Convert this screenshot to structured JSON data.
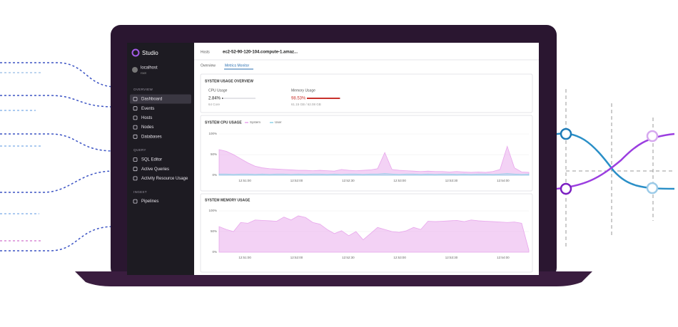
{
  "sidebar": {
    "brand": "Studio",
    "user": "localhost",
    "user_role": "root",
    "sections": [
      {
        "title": "OVERVIEW",
        "items": [
          "Dashboard",
          "Events",
          "Hosts",
          "Nodes",
          "Databases"
        ]
      },
      {
        "title": "QUERY",
        "items": [
          "SQL Editor",
          "Active Queries",
          "Activity Resource Usage"
        ]
      },
      {
        "title": "INGEST",
        "items": [
          "Pipelines"
        ]
      }
    ]
  },
  "header": {
    "breadcrumb": [
      "Hosts",
      "ec2-52-90-120-104.compute-1.amaz..."
    ]
  },
  "tabs": [
    "Overview",
    "Metrics Monitor"
  ],
  "usage_overview": {
    "title": "SYSTEM USAGE OVERVIEW",
    "cpu": {
      "label": "CPU Usage",
      "value": 2.84,
      "value_label": "2.84%",
      "note": "64 Core"
    },
    "memory": {
      "label": "Memory Usage",
      "value": 98.53,
      "value_label": "98.53%",
      "note": "61.15 GB / 62.08 GB"
    }
  },
  "cpu_chart": {
    "title": "SYSTEM CPU USAGE",
    "ylim": [
      0,
      100
    ],
    "yticks": [
      {
        "value": 100,
        "label": "100%"
      },
      {
        "value": 50,
        "label": "50%"
      },
      {
        "value": 0,
        "label": "0%"
      }
    ],
    "xticks": [
      "12:51:00",
      "12:52:00",
      "12:52:30",
      "12:53:00",
      "12:53:30",
      "12:54:00"
    ],
    "series": [
      {
        "name": "System",
        "color": "#e8a6ec",
        "values": [
          62,
          58,
          50,
          40,
          30,
          22,
          18,
          16,
          15,
          14,
          13,
          12,
          12,
          11,
          12,
          11,
          10,
          14,
          12,
          11,
          12,
          13,
          16,
          55,
          14,
          12,
          11,
          10,
          9,
          10,
          9,
          9,
          8,
          9,
          8,
          7,
          8,
          7,
          9,
          14,
          70,
          18,
          8,
          7
        ]
      },
      {
        "name": "User",
        "color": "#8fd3e8",
        "values": [
          3,
          3,
          2,
          3,
          3,
          2,
          3,
          2,
          3,
          3,
          2,
          3,
          2,
          3,
          3,
          2,
          3,
          2,
          3,
          3,
          2,
          3,
          3,
          4,
          3,
          2,
          3,
          3,
          2,
          3,
          2,
          3,
          3,
          2,
          3,
          2,
          3,
          3,
          2,
          3,
          4,
          3,
          2,
          3
        ]
      }
    ]
  },
  "memory_chart": {
    "title": "SYSTEM MEMORY USAGE",
    "ylim": [
      0,
      100
    ],
    "yticks": [
      {
        "value": 100,
        "label": "100%"
      },
      {
        "value": 50,
        "label": "50%"
      },
      {
        "value": 0,
        "label": "0%"
      }
    ],
    "xticks": [
      "12:51:00",
      "12:52:00",
      "12:52:30",
      "12:53:00",
      "12:53:30",
      "12:54:00"
    ],
    "series": [
      {
        "name": "Memory",
        "color": "#e8a6ec",
        "values": [
          62,
          55,
          50,
          72,
          70,
          78,
          77,
          76,
          75,
          85,
          78,
          88,
          84,
          72,
          68,
          55,
          45,
          52,
          40,
          50,
          30,
          45,
          60,
          55,
          50,
          48,
          52,
          60,
          55,
          75,
          74,
          75,
          76,
          77,
          74,
          78,
          76,
          75,
          74,
          73,
          72,
          73,
          70,
          5
        ]
      }
    ]
  }
}
